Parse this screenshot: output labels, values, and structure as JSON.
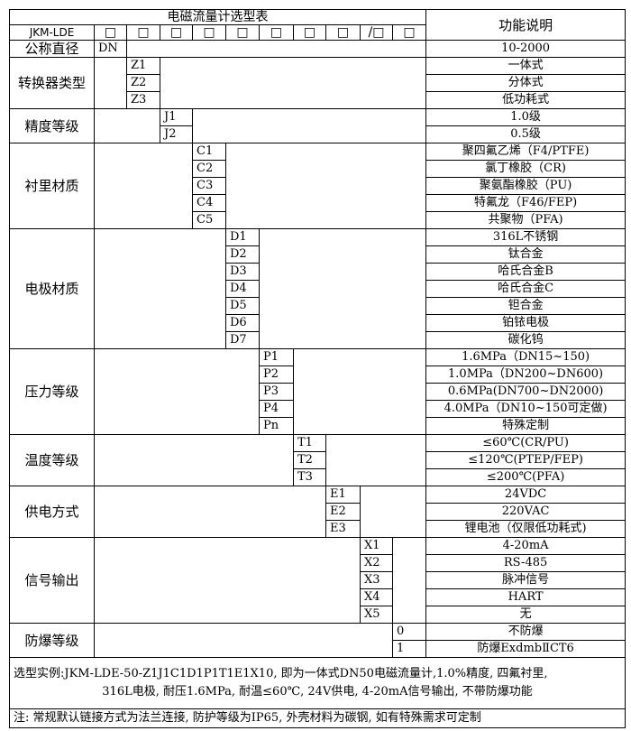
{
  "title": "电磁流量计选型表",
  "function_header": "功能说明",
  "model_prefix": "JKM-LDE",
  "header_boxes": [
    "□",
    "□",
    "□",
    "□",
    "□",
    "□",
    "□",
    "□",
    "/□",
    "□"
  ],
  "nominal": {
    "label": "公称直径",
    "code": "DN",
    "function": "10-2000"
  },
  "groups": [
    {
      "label": "转换器类型",
      "col": 2,
      "items": [
        [
          "Z1",
          "一体式"
        ],
        [
          "Z2",
          "分体式"
        ],
        [
          "Z3",
          "低功耗式"
        ]
      ]
    },
    {
      "label": "精度等级",
      "col": 3,
      "items": [
        [
          "J1",
          "1.0级"
        ],
        [
          "J2",
          "0.5级"
        ]
      ]
    },
    {
      "label": "衬里材质",
      "col": 4,
      "items": [
        [
          "C1",
          "聚四氟乙烯（F4/PTFE)"
        ],
        [
          "C2",
          "氯丁橡胶（CR)"
        ],
        [
          "C3",
          "聚氨酯橡胶（PU)"
        ],
        [
          "C4",
          "特氟龙（F46/FEP)"
        ],
        [
          "C5",
          "共聚物（PFA)"
        ]
      ]
    },
    {
      "label": "电极材质",
      "col": 5,
      "items": [
        [
          "D1",
          "316L不锈钢"
        ],
        [
          "D2",
          "钛合金"
        ],
        [
          "D3",
          "哈氏合金B"
        ],
        [
          "D4",
          "哈氏合金C"
        ],
        [
          "D5",
          "钽合金"
        ],
        [
          "D6",
          "铂铱电极"
        ],
        [
          "D7",
          "碳化钨"
        ]
      ]
    },
    {
      "label": "压力等级",
      "col": 6,
      "items": [
        [
          "P1",
          "1.6MPa（DN15~150)"
        ],
        [
          "P2",
          "1.0MPa（DN200~DN600)"
        ],
        [
          "P3",
          "0.6MPa(DN700~DN2000)"
        ],
        [
          "P4",
          "4.0MPa（DN10~150可定做)"
        ],
        [
          "Pn",
          "特殊定制"
        ]
      ]
    },
    {
      "label": "温度等级",
      "col": 7,
      "items": [
        [
          "T1",
          "≤60℃(CR/PU)"
        ],
        [
          "T2",
          "≤120℃(PTEP/FEP)"
        ],
        [
          "T3",
          "≤200℃(PFA)"
        ]
      ]
    },
    {
      "label": "供电方式",
      "col": 8,
      "items": [
        [
          "E1",
          "24VDC"
        ],
        [
          "E2",
          "220VAC"
        ],
        [
          "E3",
          "锂电池（仅限低功耗式)"
        ]
      ]
    },
    {
      "label": "信号输出",
      "col": 9,
      "items": [
        [
          "X1",
          "4-20mA"
        ],
        [
          "X2",
          "RS-485"
        ],
        [
          "X3",
          "脉冲信号"
        ],
        [
          "X4",
          "HART"
        ],
        [
          "X5",
          "无"
        ]
      ]
    },
    {
      "label": "防爆等级",
      "col": 10,
      "items": [
        [
          "0",
          "不防爆"
        ],
        [
          "1",
          "防爆ExdmbⅡCT6"
        ]
      ]
    }
  ],
  "example": {
    "line1": "选型实例:JKM-LDE-50-Z1J1C1D1P1T1E1X10, 即为一体式DN50电磁流量计,1.0%精度, 四氟衬里,",
    "line2": "316L电极, 耐压1.6MPa, 耐温≤60℃, 24V供电, 4-20mA信号输出, 不带防爆功能"
  },
  "note": "注: 常规默认链接方式为法兰连接, 防护等级为IP65, 外壳材料为碳钢, 如有特殊需求可定制"
}
